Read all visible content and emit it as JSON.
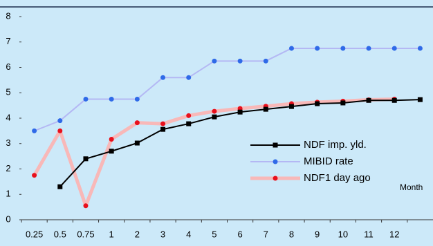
{
  "chart_data": {
    "type": "line",
    "categories": [
      "0.25",
      "0.5",
      "0.75",
      "1",
      "2",
      "3",
      "4",
      "5",
      "6",
      "7",
      "8",
      "9",
      "10",
      "11",
      "12",
      null
    ],
    "series": [
      {
        "name": "NDF imp. yld.",
        "color": "#000000",
        "marker_color": "#000000",
        "marker": "square",
        "values": [
          null,
          1.3,
          2.4,
          2.7,
          3.02,
          3.56,
          3.78,
          4.05,
          4.24,
          4.35,
          4.46,
          4.57,
          4.6,
          4.7,
          4.7,
          4.73
        ]
      },
      {
        "name": "MIBID rate",
        "color": "#b4b8f4",
        "marker_color": "#2f6ae8",
        "marker": "circle",
        "values": [
          3.5,
          3.9,
          4.75,
          4.75,
          4.75,
          5.6,
          5.6,
          6.25,
          6.25,
          6.25,
          6.75,
          6.75,
          6.75,
          6.75,
          6.75,
          6.75
        ]
      },
      {
        "name": "NDF1 day ago",
        "color": "#f8b8b8",
        "marker_color": "#e8101c",
        "marker": "circle",
        "width": 5,
        "values": [
          1.75,
          3.5,
          0.55,
          3.17,
          3.82,
          3.78,
          4.1,
          4.27,
          4.38,
          4.47,
          4.57,
          4.63,
          4.67,
          4.72,
          4.75,
          null
        ]
      }
    ],
    "annotation": "Month",
    "ylim": [
      0,
      8
    ],
    "yticks": [
      0,
      1,
      2,
      3,
      4,
      5,
      6,
      7,
      8
    ]
  }
}
